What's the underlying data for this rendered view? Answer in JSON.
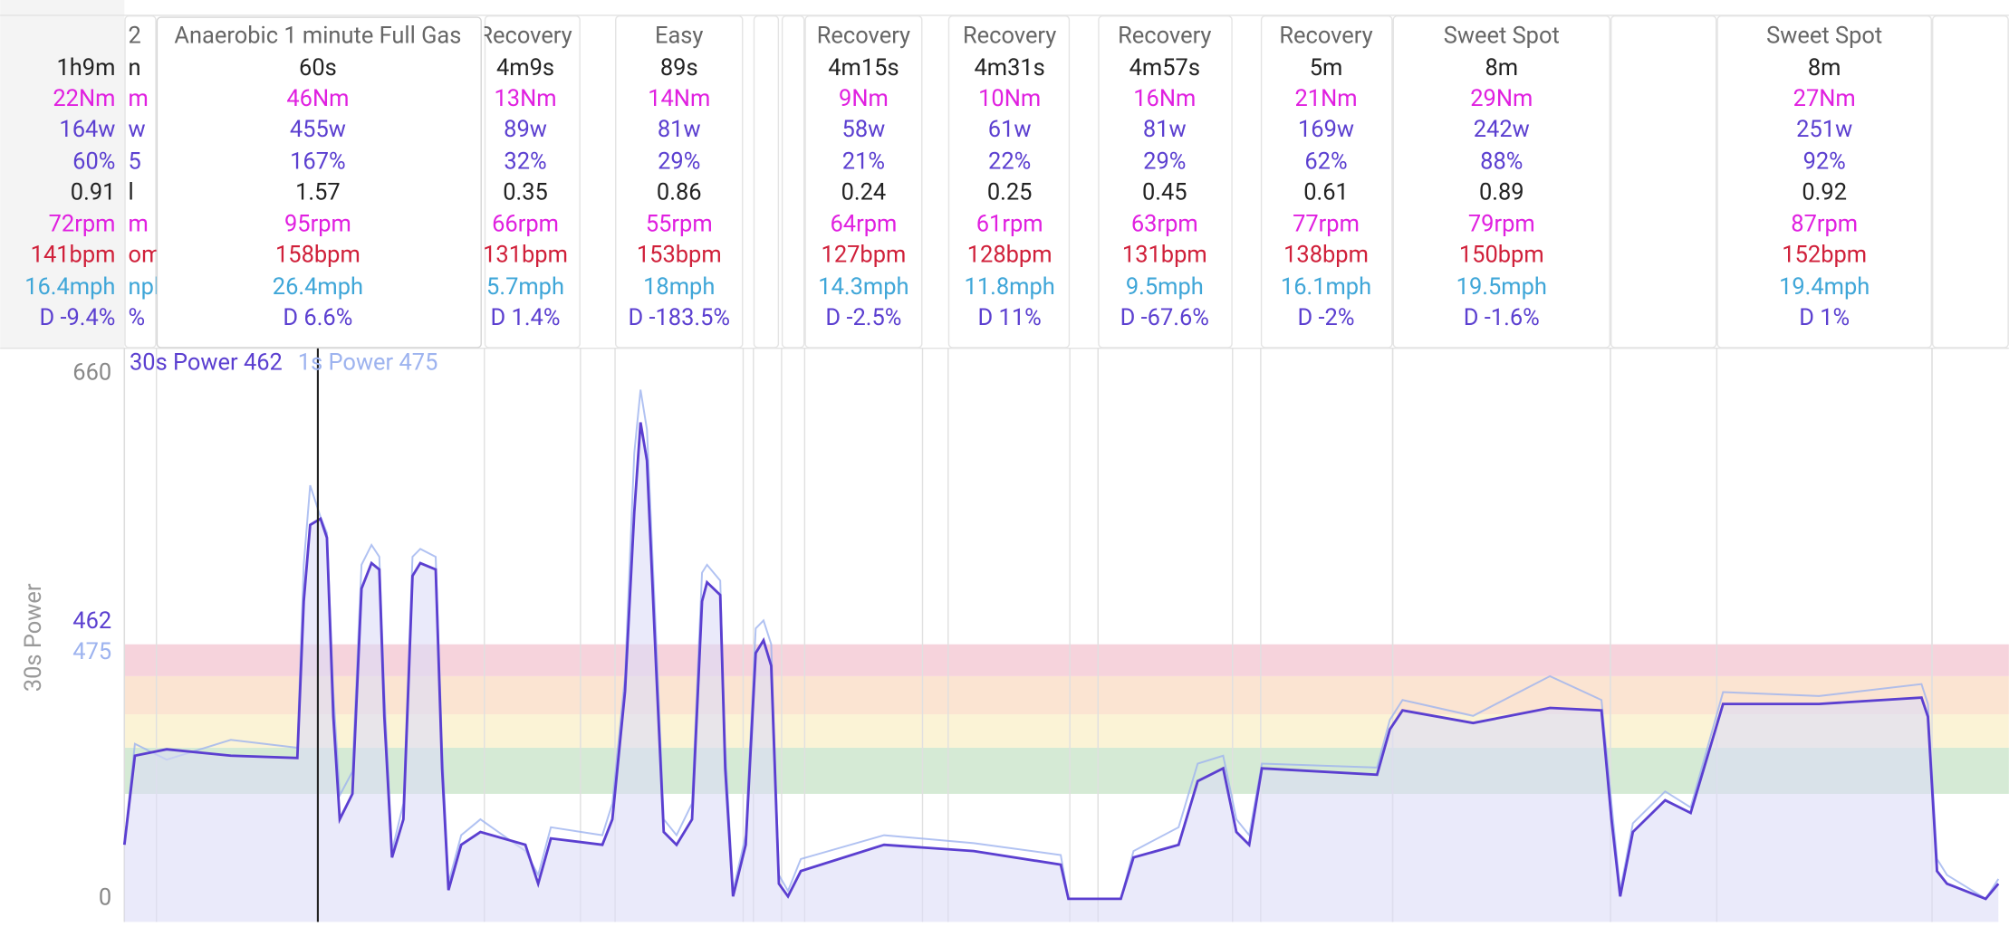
{
  "intervals": [
    {
      "stats": [
        "1h9m",
        "22Nm",
        "164w",
        "60%",
        "0.91",
        "72rpm",
        "141bpm",
        "16.4mph",
        "D -9.4%"
      ]
    },
    {
      "title": "2",
      "stats": [
        "n",
        "m",
        "w",
        "5",
        "l",
        "m",
        "om",
        "npl",
        "%"
      ]
    },
    {
      "title": "Recovery",
      "stats": [
        "4m9s",
        "13Nm",
        "89w",
        "32%",
        "0.35",
        "66rpm",
        "131bpm",
        "5.7mph",
        "D 1.4%"
      ]
    },
    {
      "title": "Easy",
      "stats": [
        "89s",
        "14Nm",
        "81w",
        "29%",
        "0.86",
        "55rpm",
        "153bpm",
        "18mph",
        "D -183.5%"
      ]
    },
    {
      "title": "Recovery",
      "stats": [
        "4m15s",
        "9Nm",
        "58w",
        "21%",
        "0.24",
        "64rpm",
        "127bpm",
        "14.3mph",
        "D -2.5%"
      ]
    },
    {
      "title": "Recovery",
      "stats": [
        "4m31s",
        "10Nm",
        "61w",
        "22%",
        "0.25",
        "61rpm",
        "128bpm",
        "11.8mph",
        "D 11%"
      ]
    },
    {
      "title": "Recovery",
      "stats": [
        "4m57s",
        "16Nm",
        "81w",
        "29%",
        "0.45",
        "63rpm",
        "131bpm",
        "9.5mph",
        "D -67.6%"
      ]
    },
    {
      "title": "Recovery",
      "stats": [
        "5m",
        "21Nm",
        "169w",
        "62%",
        "0.61",
        "77rpm",
        "138bpm",
        "16.1mph",
        "D -2%"
      ]
    },
    {
      "title": "Sweet Spot",
      "stats": [
        "8m",
        "29Nm",
        "242w",
        "88%",
        "0.89",
        "79rpm",
        "150bpm",
        "19.5mph",
        "D -1.6%"
      ]
    },
    {
      "title": "Sweet Spot",
      "stats": [
        "8m",
        "27Nm",
        "251w",
        "92%",
        "0.92",
        "87rpm",
        "152bpm",
        "19.4mph",
        "D 1%"
      ]
    }
  ],
  "popup": {
    "title": "Anaerobic 1 minute Full Gas",
    "stats": [
      "60s",
      "46Nm",
      "455w",
      "167%",
      "1.57",
      "95rpm",
      "158bpm",
      "26.4mph",
      "D 6.6%"
    ]
  },
  "chart_data": {
    "type": "line",
    "y_axis_label": "30s Power",
    "xlim": [
      0,
      4140
    ],
    "ylim": [
      0,
      660
    ],
    "yticks": [
      0,
      660
    ],
    "cursor_x": 425,
    "zones": [
      {
        "from": 132,
        "to": 190,
        "color": "#d5ead5"
      },
      {
        "from": 190,
        "to": 232,
        "color": "#fbf3d6"
      },
      {
        "from": 232,
        "to": 280,
        "color": "#fbe4d2"
      },
      {
        "from": 280,
        "to": 320,
        "color": "#f6d3dc"
      }
    ],
    "x": [
      0,
      23,
      93,
      234,
      380,
      394,
      408,
      431,
      445,
      459,
      473,
      501,
      521,
      543,
      560,
      571,
      588,
      613,
      633,
      650,
      684,
      698,
      712,
      740,
      782,
      881,
      909,
      937,
      1050,
      1072,
      1100,
      1120,
      1134,
      1148,
      1168,
      1185,
      1213,
      1247,
      1269,
      1280,
      1309,
      1320,
      1337,
      1365,
      1387,
      1404,
      1421,
      1438,
      1458,
      1486,
      1669,
      1866,
      2057,
      2074,
      2189,
      2217,
      2316,
      2358,
      2414,
      2443,
      2471,
      2499,
      2752,
      2780,
      2808,
      2963,
      3132,
      3245,
      3267,
      3286,
      3314,
      3385,
      3441,
      3512,
      3723,
      3948,
      3962,
      3982,
      4004,
      4089,
      4117
    ],
    "series": [
      {
        "name": "30s Power",
        "cursor_value": 462,
        "color": "#5b3fd0",
        "values": [
          68,
          180,
          188,
          180,
          177,
          374,
          470,
          478,
          454,
          229,
          100,
          132,
          390,
          422,
          414,
          229,
          52,
          100,
          406,
          422,
          414,
          164,
          11,
          68,
          84,
          68,
          19,
          76,
          68,
          100,
          261,
          486,
          599,
          551,
          293,
          84,
          68,
          100,
          374,
          398,
          382,
          164,
          3,
          68,
          309,
          325,
          293,
          19,
          3,
          35,
          68,
          60,
          43,
          0,
          0,
          52,
          68,
          148,
          164,
          84,
          68,
          164,
          156,
          213,
          237,
          221,
          240,
          237,
          100,
          3,
          84,
          124,
          108,
          245,
          245,
          253,
          229,
          35,
          19,
          0,
          19
        ]
      },
      {
        "name": "1s Power",
        "cursor_value": 475,
        "color": "#9db3ef",
        "values": [
          70,
          195,
          175,
          200,
          190,
          420,
          520,
          480,
          460,
          260,
          130,
          160,
          420,
          445,
          430,
          260,
          60,
          120,
          430,
          440,
          430,
          190,
          20,
          80,
          100,
          60,
          30,
          90,
          80,
          120,
          280,
          560,
          640,
          590,
          330,
          100,
          80,
          120,
          410,
          420,
          400,
          190,
          10,
          80,
          340,
          350,
          320,
          30,
          10,
          50,
          80,
          70,
          55,
          0,
          0,
          60,
          90,
          170,
          180,
          100,
          80,
          170,
          165,
          225,
          250,
          230,
          280,
          250,
          120,
          10,
          95,
          135,
          115,
          260,
          255,
          270,
          245,
          50,
          30,
          0,
          25
        ]
      }
    ]
  }
}
